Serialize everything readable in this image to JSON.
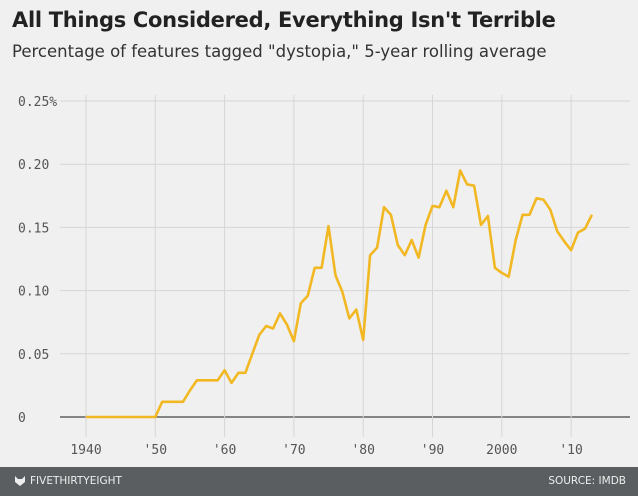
{
  "chart_data": {
    "type": "line",
    "title": "All Things Considered, Everything Isn't Terrible",
    "subtitle": "Percentage of features tagged \"dystopia,\" 5-year rolling average",
    "xlabel": "",
    "ylabel": "",
    "xlim": [
      1936,
      2017
    ],
    "ylim": [
      0,
      0.25
    ],
    "grid": true,
    "color": "#f2b824",
    "x_ticks": [
      {
        "value": 1940,
        "label": "1940"
      },
      {
        "value": 1950,
        "label": "'50"
      },
      {
        "value": 1960,
        "label": "'60"
      },
      {
        "value": 1970,
        "label": "'70"
      },
      {
        "value": 1980,
        "label": "'80"
      },
      {
        "value": 1990,
        "label": "'90"
      },
      {
        "value": 2000,
        "label": "2000"
      },
      {
        "value": 2010,
        "label": "'10"
      }
    ],
    "y_ticks": [
      {
        "value": 0,
        "label": "0"
      },
      {
        "value": 0.05,
        "label": "0.05"
      },
      {
        "value": 0.1,
        "label": "0.10"
      },
      {
        "value": 0.15,
        "label": "0.15"
      },
      {
        "value": 0.2,
        "label": "0.20"
      },
      {
        "value": 0.25,
        "label": "0.25%"
      }
    ],
    "series": [
      {
        "name": "dystopia",
        "x": [
          1940,
          1941,
          1942,
          1943,
          1944,
          1945,
          1946,
          1947,
          1948,
          1949,
          1950,
          1951,
          1952,
          1953,
          1954,
          1955,
          1956,
          1957,
          1958,
          1959,
          1960,
          1961,
          1962,
          1963,
          1964,
          1965,
          1966,
          1967,
          1968,
          1969,
          1970,
          1971,
          1972,
          1973,
          1974,
          1975,
          1976,
          1977,
          1978,
          1979,
          1980,
          1981,
          1982,
          1983,
          1984,
          1985,
          1986,
          1987,
          1988,
          1989,
          1990,
          1991,
          1992,
          1993,
          1994,
          1995,
          1996,
          1997,
          1998,
          1999,
          2000,
          2001,
          2002,
          2003,
          2004,
          2005,
          2006,
          2007,
          2008,
          2009,
          2010,
          2011,
          2012,
          2013
        ],
        "values": [
          0,
          0,
          0,
          0,
          0,
          0,
          0,
          0,
          0,
          0,
          0,
          0.012,
          0.012,
          0.012,
          0.012,
          0.021,
          0.029,
          0.029,
          0.029,
          0.029,
          0.037,
          0.027,
          0.035,
          0.035,
          0.05,
          0.065,
          0.072,
          0.07,
          0.082,
          0.073,
          0.06,
          0.09,
          0.096,
          0.118,
          0.118,
          0.151,
          0.112,
          0.099,
          0.078,
          0.085,
          0.061,
          0.128,
          0.134,
          0.166,
          0.16,
          0.136,
          0.128,
          0.14,
          0.126,
          0.152,
          0.167,
          0.166,
          0.179,
          0.166,
          0.195,
          0.184,
          0.183,
          0.152,
          0.159,
          0.118,
          0.114,
          0.111,
          0.14,
          0.16,
          0.16,
          0.173,
          0.172,
          0.164,
          0.147,
          0.139,
          0.132,
          0.146,
          0.149,
          0.16
        ]
      }
    ]
  },
  "footer": {
    "brand": "FIVETHIRTYEIGHT",
    "source": "SOURCE: IMDB"
  }
}
